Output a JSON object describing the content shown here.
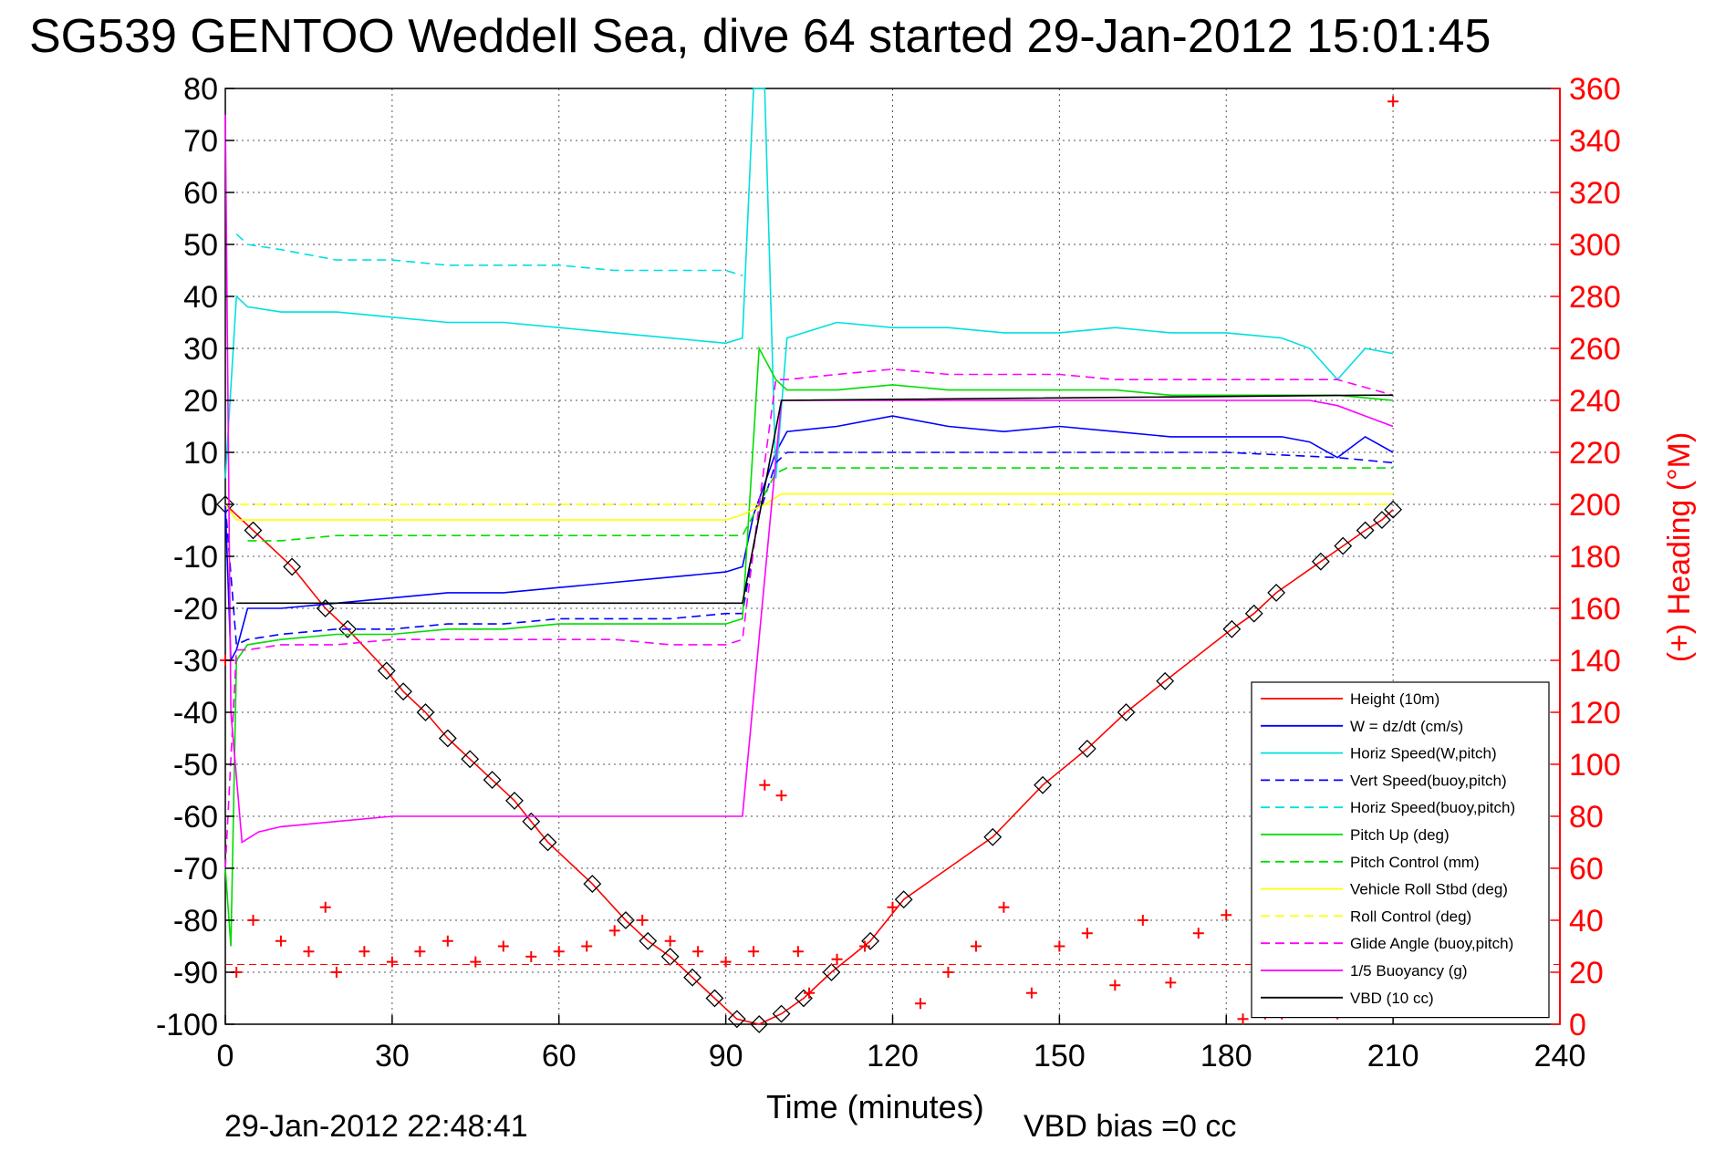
{
  "chart_data": {
    "type": "line",
    "title": "SG539 GENTOO Weddell Sea, dive 64 started 29-Jan-2012 15:01:45",
    "xlabel": "Time (minutes)",
    "ylabel_right": "(+) Heading (°M)",
    "footer_left": "29-Jan-2012 22:48:41",
    "footer_right": "VBD bias =0 cc",
    "xlim": [
      0,
      240
    ],
    "ylim": [
      -100,
      80
    ],
    "ylim_right": [
      0,
      360
    ],
    "xticks": [
      "0",
      "30",
      "60",
      "90",
      "120",
      "150",
      "180",
      "210",
      "240"
    ],
    "yticks": [
      "80",
      "70",
      "60",
      "50",
      "40",
      "30",
      "20",
      "10",
      "0",
      "-10",
      "-20",
      "-30",
      "-40",
      "-50",
      "-60",
      "-70",
      "-80",
      "-90",
      "-100"
    ],
    "yticks_right": [
      "360",
      "340",
      "320",
      "300",
      "280",
      "260",
      "240",
      "220",
      "200",
      "180",
      "160",
      "140",
      "120",
      "100",
      "80",
      "60",
      "40",
      "20",
      "0"
    ],
    "grid": true,
    "legend_position": "bottom-right",
    "series": [
      {
        "name": "Height (10m)",
        "color": "#ff0000",
        "style": "solid",
        "x": [
          0,
          5,
          12,
          18,
          22,
          29,
          32,
          36,
          40,
          44,
          48,
          52,
          55,
          58,
          66,
          72,
          76,
          80,
          84,
          88,
          92,
          96,
          100,
          104,
          109,
          116,
          122,
          138,
          147,
          155,
          162,
          169,
          181,
          185,
          189,
          197,
          201,
          205,
          208,
          210
        ],
        "y": [
          0,
          -5,
          -12,
          -20,
          -24,
          -32,
          -36,
          -40,
          -45,
          -49,
          -53,
          -57,
          -61,
          -65,
          -73,
          -80,
          -84,
          -87,
          -91,
          -95,
          -99,
          -100,
          -98,
          -95,
          -90,
          -84,
          -76,
          -64,
          -54,
          -47,
          -40,
          -34,
          -24,
          -21,
          -17,
          -11,
          -8,
          -5,
          -3,
          -1
        ]
      },
      {
        "name": "W = dz/dt (cm/s)",
        "color": "#0000ff",
        "style": "solid",
        "x": [
          0,
          1,
          2,
          4,
          10,
          20,
          30,
          40,
          50,
          60,
          70,
          80,
          90,
          93,
          95,
          99,
          101,
          110,
          120,
          130,
          140,
          150,
          160,
          170,
          180,
          190,
          195,
          200,
          205,
          210
        ],
        "y": [
          0,
          -30,
          -28,
          -20,
          -20,
          -19,
          -18,
          -17,
          -17,
          -16,
          -15,
          -14,
          -13,
          -12,
          -2,
          10,
          14,
          15,
          17,
          15,
          14,
          15,
          14,
          13,
          13,
          13,
          12,
          9,
          13,
          10
        ]
      },
      {
        "name": "Horiz Speed(W,pitch)",
        "color": "#00e0e0",
        "style": "solid",
        "x": [
          0,
          2,
          4,
          10,
          20,
          30,
          40,
          50,
          60,
          70,
          80,
          90,
          93,
          95,
          97,
          99,
          101,
          110,
          120,
          130,
          140,
          150,
          160,
          170,
          180,
          190,
          195,
          200,
          205,
          210
        ],
        "y": [
          5,
          40,
          38,
          37,
          37,
          36,
          35,
          35,
          34,
          33,
          32,
          31,
          32,
          80,
          80,
          5,
          32,
          35,
          34,
          34,
          33,
          33,
          34,
          33,
          33,
          32,
          30,
          24,
          30,
          29
        ]
      },
      {
        "name": "Vert Speed(buoy,pitch)",
        "color": "#0000ff",
        "style": "dashed",
        "x": [
          0,
          2,
          4,
          10,
          20,
          30,
          40,
          50,
          60,
          70,
          80,
          90,
          93,
          96,
          99,
          101,
          110,
          120,
          140,
          160,
          180,
          200,
          210
        ],
        "y": [
          0,
          -27,
          -26,
          -25,
          -24,
          -24,
          -23,
          -23,
          -22,
          -22,
          -22,
          -21,
          -21,
          -2,
          8,
          10,
          10,
          10,
          10,
          10,
          10,
          9,
          8
        ]
      },
      {
        "name": "Horiz Speed(buoy,pitch)",
        "color": "#00e0e0",
        "style": "dashed",
        "x": [
          2,
          4,
          10,
          20,
          30,
          40,
          50,
          60,
          70,
          80,
          90,
          93
        ],
        "y": [
          52,
          50,
          49,
          47,
          47,
          46,
          46,
          46,
          45,
          45,
          45,
          44
        ]
      },
      {
        "name": "Pitch Up (deg)",
        "color": "#00dd00",
        "style": "solid",
        "x": [
          0,
          1,
          2,
          4,
          10,
          20,
          30,
          40,
          50,
          60,
          70,
          80,
          90,
          93,
          96,
          99,
          101,
          110,
          120,
          130,
          140,
          150,
          160,
          170,
          180,
          190,
          200,
          210
        ],
        "y": [
          -70,
          -85,
          -30,
          -27,
          -26,
          -25,
          -25,
          -24,
          -24,
          -23,
          -23,
          -23,
          -23,
          -22,
          30,
          24,
          22,
          22,
          23,
          22,
          22,
          22,
          22,
          21,
          21,
          21,
          21,
          20
        ]
      },
      {
        "name": "Pitch Control (mm)",
        "color": "#00dd00",
        "style": "dashed",
        "x": [
          4,
          10,
          20,
          30,
          40,
          50,
          60,
          70,
          80,
          90,
          93,
          96,
          99,
          101,
          110,
          120,
          140,
          160,
          180,
          200,
          210
        ],
        "y": [
          -7,
          -7,
          -6,
          -6,
          -6,
          -6,
          -6,
          -6,
          -6,
          -6,
          -6,
          0,
          6,
          7,
          7,
          7,
          7,
          7,
          7,
          7,
          7
        ]
      },
      {
        "name": "Vehicle Roll Stbd (deg)",
        "color": "#ffff00",
        "style": "solid",
        "x": [
          0,
          2,
          4,
          10,
          20,
          30,
          40,
          50,
          60,
          70,
          80,
          90,
          93,
          97,
          100,
          110,
          120,
          140,
          160,
          180,
          200,
          210
        ],
        "y": [
          0,
          -3,
          -3,
          -3,
          -3,
          -3,
          -3,
          -3,
          -3,
          -3,
          -3,
          -3,
          -2,
          0,
          2,
          2,
          2,
          2,
          2,
          2,
          2,
          2
        ]
      },
      {
        "name": "Roll Control (deg)",
        "color": "#ffff00",
        "style": "dashed",
        "x": [
          0,
          4,
          100,
          210
        ],
        "y": [
          0,
          0,
          0,
          0
        ]
      },
      {
        "name": "Glide Angle (buoy,pitch)",
        "color": "#ff00ff",
        "style": "dashed",
        "x": [
          0,
          2,
          4,
          10,
          20,
          30,
          40,
          50,
          60,
          70,
          80,
          90,
          93,
          96,
          99,
          101,
          110,
          120,
          130,
          140,
          150,
          160,
          170,
          180,
          190,
          200,
          210
        ],
        "y": [
          -70,
          -28,
          -28,
          -27,
          -27,
          -26,
          -26,
          -26,
          -26,
          -26,
          -27,
          -27,
          -26,
          0,
          24,
          24,
          25,
          26,
          25,
          25,
          25,
          24,
          24,
          24,
          24,
          24,
          21
        ]
      },
      {
        "name": "1/5 Buoyancy (g)",
        "color": "#ff00ff",
        "style": "solid",
        "x": [
          0,
          1,
          3,
          6,
          10,
          20,
          30,
          40,
          50,
          60,
          70,
          80,
          90,
          93,
          100,
          110,
          120,
          140,
          160,
          180,
          195,
          200,
          205,
          210
        ],
        "y": [
          75,
          -40,
          -65,
          -63,
          -62,
          -61,
          -60,
          -60,
          -60,
          -60,
          -60,
          -60,
          -60,
          -60,
          20,
          20,
          20,
          20,
          20,
          20,
          20,
          19,
          17,
          15
        ]
      },
      {
        "name": "VBD (10 cc)",
        "color": "#000000",
        "style": "solid",
        "x": [
          2,
          4,
          93,
          100,
          205,
          210
        ],
        "y": [
          -19,
          -19,
          -19,
          20,
          21,
          21
        ]
      },
      {
        "name": "Heading",
        "color": "#ff0000",
        "style": "plus",
        "axis": "right",
        "x": [
          0,
          2,
          5,
          10,
          15,
          18,
          20,
          25,
          30,
          35,
          40,
          45,
          50,
          55,
          60,
          65,
          70,
          75,
          80,
          85,
          90,
          95,
          97,
          100,
          103,
          105,
          110,
          115,
          120,
          125,
          130,
          135,
          140,
          145,
          150,
          155,
          160,
          165,
          170,
          175,
          180,
          183,
          187,
          190,
          195,
          200,
          205,
          210
        ],
        "y": [
          140,
          20,
          40,
          32,
          28,
          45,
          20,
          28,
          24,
          28,
          32,
          24,
          30,
          26,
          28,
          30,
          36,
          40,
          32,
          28,
          24,
          28,
          92,
          88,
          28,
          12,
          25,
          30,
          45,
          8,
          20,
          30,
          45,
          12,
          30,
          35,
          15,
          40,
          16,
          35,
          42,
          2,
          4,
          4,
          6,
          4,
          8,
          355
        ]
      }
    ]
  }
}
